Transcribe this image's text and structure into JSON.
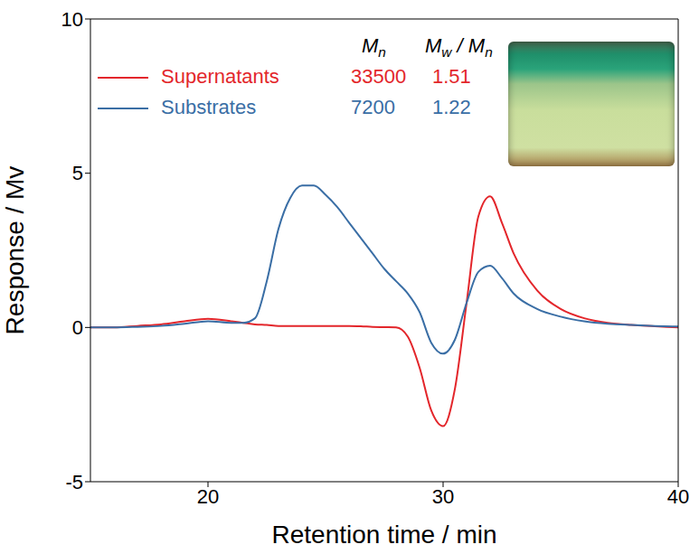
{
  "chart_data": {
    "type": "line",
    "x_label": "Retention time / min",
    "y_label": "Response / Mv",
    "x": [
      15,
      16,
      17,
      18,
      19,
      20,
      21,
      21.5,
      22,
      22.5,
      23,
      23.5,
      24,
      24.5,
      25,
      25.5,
      26,
      26.5,
      27,
      27.5,
      28,
      28.5,
      29,
      29.5,
      30,
      30.5,
      31,
      31.5,
      32,
      32.5,
      33,
      34,
      35,
      36,
      37,
      38,
      39,
      40
    ],
    "xlim": [
      15,
      40
    ],
    "xticks": [
      20,
      30,
      40
    ],
    "ylim": [
      -5,
      10
    ],
    "yticks": [
      -5,
      0,
      5,
      10
    ],
    "grid": false,
    "legend": "upper left",
    "table_headers": [
      "Mn",
      "Mw / Mn"
    ],
    "series": [
      {
        "name": "Supernatants",
        "color": "#e3262b",
        "Mn": 33500,
        "Mw_Mn": 1.51,
        "values": [
          0,
          0,
          0.05,
          0.1,
          0.2,
          0.28,
          0.2,
          0.15,
          0.1,
          0.08,
          0.05,
          0.05,
          0.05,
          0.05,
          0.05,
          0.05,
          0.05,
          0.04,
          0.02,
          0.01,
          0,
          -0.3,
          -1.3,
          -2.7,
          -3.2,
          -2.0,
          0.8,
          3.6,
          4.25,
          3.4,
          2.4,
          1.2,
          0.6,
          0.3,
          0.15,
          0.08,
          0.04,
          0
        ]
      },
      {
        "name": "Substrates",
        "color": "#3a6ea5",
        "Mn": 7200,
        "Mw_Mn": 1.22,
        "values": [
          0,
          0,
          0.02,
          0.05,
          0.12,
          0.2,
          0.15,
          0.15,
          0.3,
          1.5,
          3.2,
          4.2,
          4.6,
          4.6,
          4.3,
          3.9,
          3.4,
          2.9,
          2.4,
          1.9,
          1.5,
          1.1,
          0.5,
          -0.5,
          -0.85,
          -0.4,
          0.8,
          1.8,
          2.0,
          1.6,
          1.1,
          0.6,
          0.35,
          0.2,
          0.12,
          0.08,
          0.05,
          0.03
        ]
      }
    ]
  }
}
